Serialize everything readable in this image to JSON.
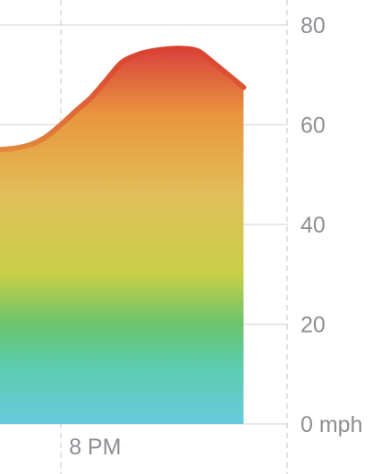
{
  "chart_data": {
    "type": "area",
    "title": "",
    "xlabel": "",
    "ylabel": "",
    "y_unit": "mph",
    "ylim": [
      0,
      80
    ],
    "y_ticks": [
      {
        "value": 80,
        "label": "80"
      },
      {
        "value": 60,
        "label": "60"
      },
      {
        "value": 40,
        "label": "40"
      },
      {
        "value": 20,
        "label": "20"
      },
      {
        "value": 0,
        "label": "0 mph"
      }
    ],
    "x_ticks": [
      {
        "value": 20,
        "label": "8 PM"
      }
    ],
    "xlim": [
      19.0,
      23.7
    ],
    "grid": true,
    "series": [
      {
        "x": [
          19.0,
          19.25,
          19.5,
          19.75,
          20.0,
          20.25,
          20.5,
          20.75,
          21.0,
          21.25,
          21.5,
          21.75,
          22.0,
          22.25,
          22.5,
          22.75,
          23.0
        ],
        "y": [
          55,
          55.3,
          56,
          57.5,
          60,
          62.8,
          65.5,
          69,
          72.5,
          74,
          74.8,
          75.2,
          75.3,
          74.8,
          72.5,
          70,
          67.5
        ]
      }
    ],
    "fill_gradient": [
      "#d9413b",
      "#e9963f",
      "#e0c05a",
      "#c8cf48",
      "#6cc46a",
      "#5ccdb0",
      "#69c9dd"
    ]
  }
}
